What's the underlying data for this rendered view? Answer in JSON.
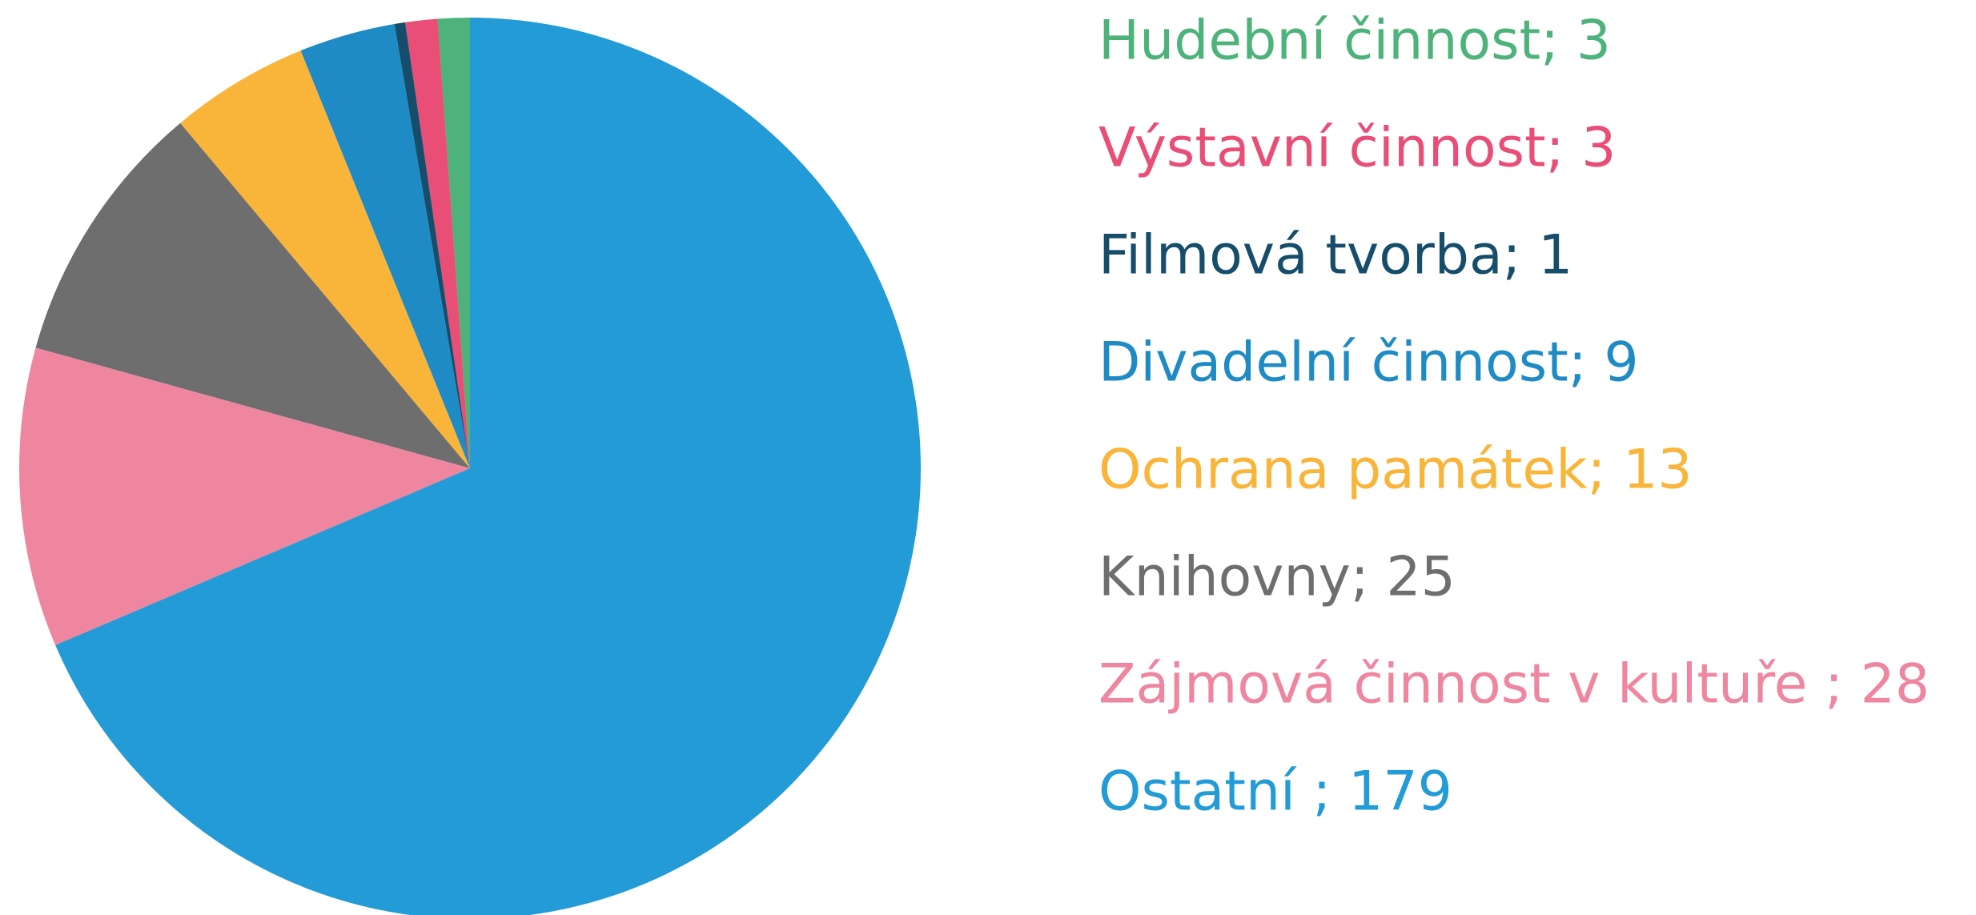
{
  "chart_data": {
    "type": "pie",
    "categories": [
      "Hudební činnost; 3",
      "Výstavní činnost; 3",
      "Filmová tvorba; 1",
      "Divadelní činnost; 9",
      "Ochrana památek; 13",
      "Knihovny; 25",
      "Zájmová činnost v kultuře ; 28",
      "Ostatní ; 179"
    ],
    "values": [
      3,
      3,
      1,
      9,
      13,
      25,
      28,
      179
    ],
    "colors": [
      "#4db37a",
      "#e94e77",
      "#154d6b",
      "#1f8bc4",
      "#f9b53a",
      "#6e6e6e",
      "#ef86a0",
      "#229bd6"
    ],
    "legend": "right"
  }
}
